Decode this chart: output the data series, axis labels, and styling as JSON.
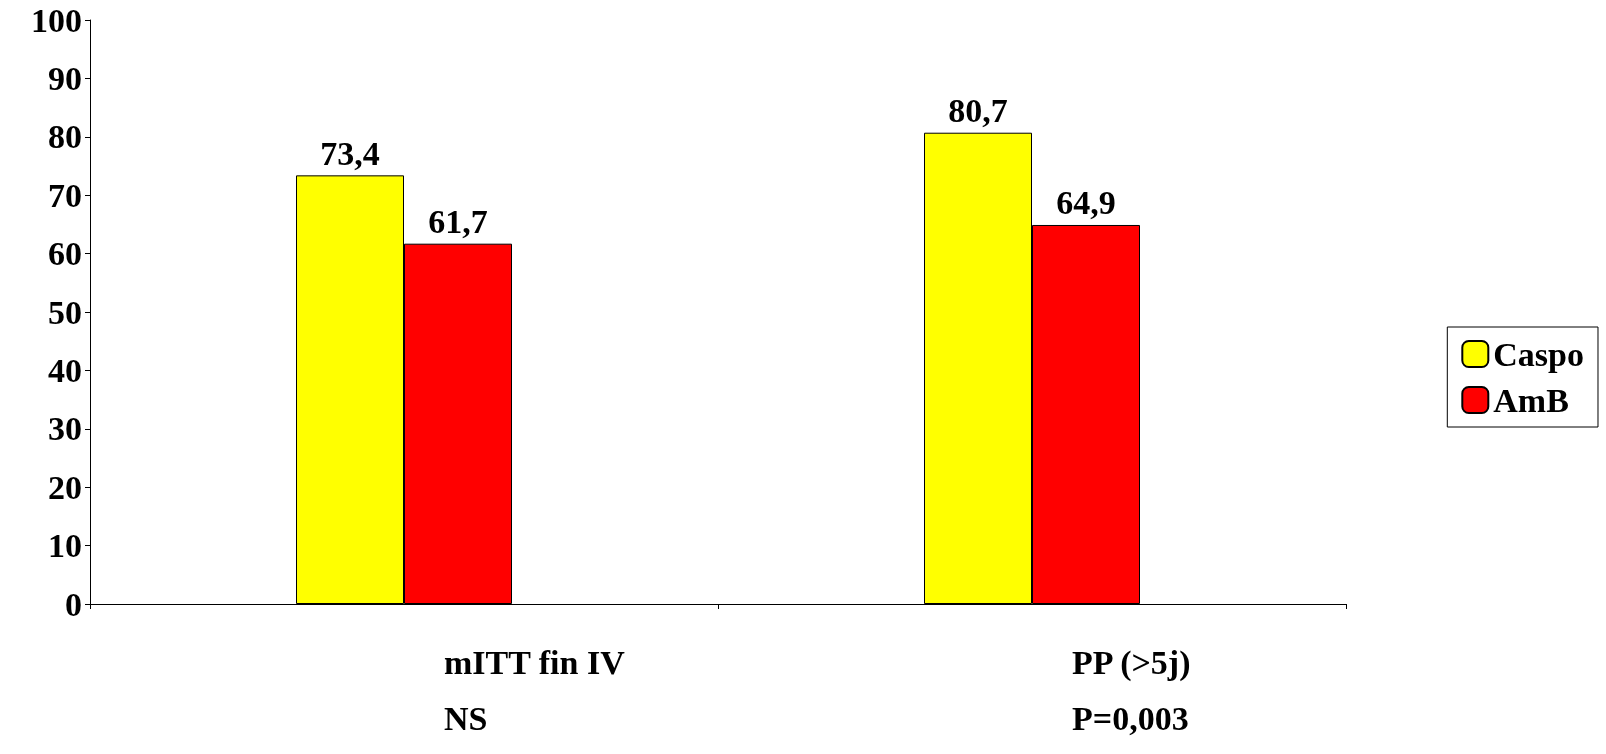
{
  "chart_data": {
    "type": "bar",
    "categories": [
      "mITT fin IV\nNS",
      "PP (>5j)\nP=0,003"
    ],
    "series": [
      {
        "name": "Caspo",
        "color": "#ffff00",
        "values": [
          73.4,
          80.7
        ],
        "value_labels": [
          "73,4",
          "80,7"
        ]
      },
      {
        "name": "AmB",
        "color": "#ff0000",
        "values": [
          61.7,
          64.9
        ],
        "value_labels": [
          "61,7",
          "64,9"
        ]
      }
    ],
    "ylim": [
      0,
      100
    ],
    "yticks": [
      0,
      10,
      20,
      30,
      40,
      50,
      60,
      70,
      80,
      90,
      100
    ],
    "grid": false,
    "legend": "right"
  }
}
